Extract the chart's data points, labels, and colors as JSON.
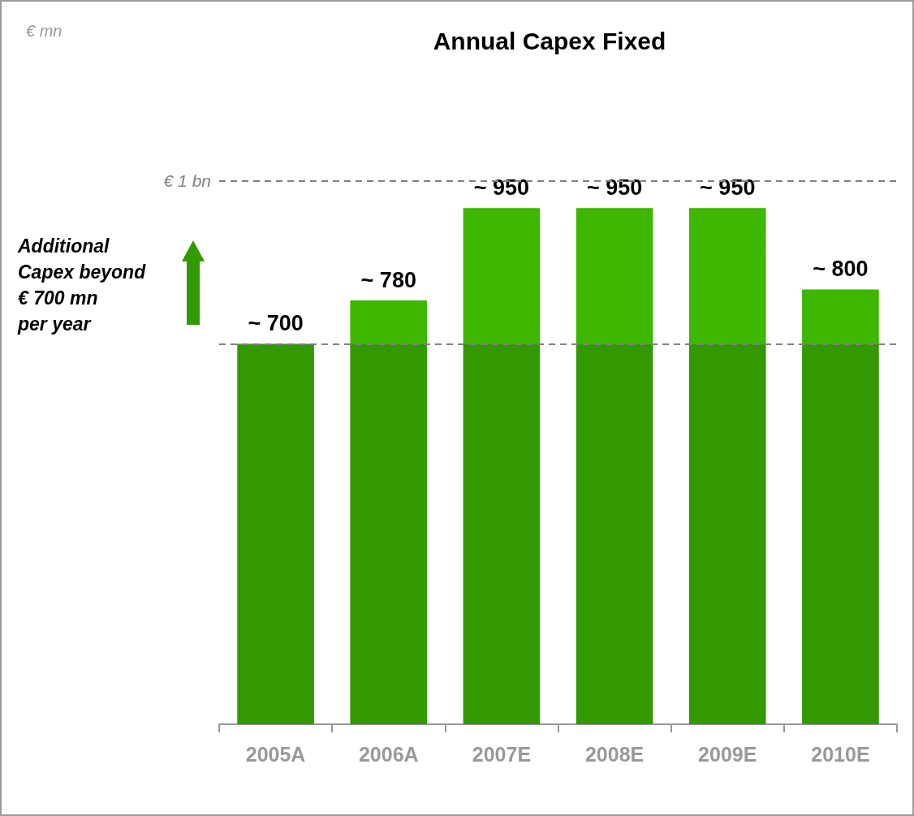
{
  "chart_data": {
    "type": "bar",
    "title": "Annual Capex Fixed",
    "categories": [
      "2005A",
      "2006A",
      "2007E",
      "2008E",
      "2009E",
      "2010E"
    ],
    "values": [
      700,
      780,
      950,
      950,
      950,
      800
    ],
    "value_labels": [
      "~ 700",
      "~ 780",
      "~ 950",
      "~ 950",
      "~ 950",
      "~ 800"
    ],
    "color": "#339900",
    "tick_labels": "x",
    "grid": false,
    "ref_lines": [
      {
        "axis": "y",
        "value": 1000,
        "label": "€ 1 bn",
        "color": "#808080",
        "line_style": "dashed"
      },
      {
        "axis": "y",
        "value": 700,
        "label": null,
        "color": "#808080",
        "line_style": "dashed"
      }
    ],
    "annotations": [
      "€ mn",
      "Additional\nCapex beyond\n€ 700 mn\nper year"
    ]
  }
}
